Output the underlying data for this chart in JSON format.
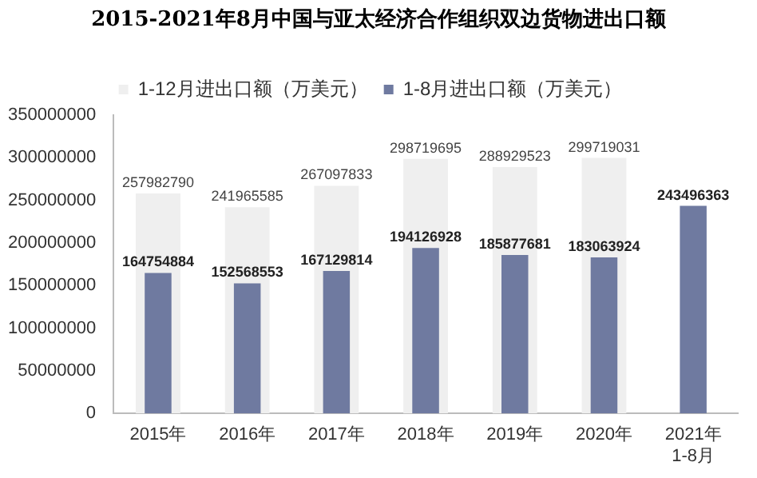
{
  "chart_data": {
    "type": "bar",
    "title": "2015-2021年8月中国与亚太经济合作组织双边货物进出口额",
    "categories": [
      "2015年",
      "2016年",
      "2017年",
      "2018年",
      "2019年",
      "2020年",
      "2021年1-8月"
    ],
    "series": [
      {
        "name": "1-12月进出口额（万美元）",
        "color": "#efefef",
        "values": [
          257982790,
          241965585,
          267097833,
          298719695,
          288929523,
          299719031,
          null
        ]
      },
      {
        "name": "1-8月进出口额（万美元）",
        "color": "#6f7aa0",
        "values": [
          164754884,
          152568553,
          167129814,
          194126928,
          185877681,
          183063924,
          243496363
        ]
      }
    ],
    "ylim": [
      0,
      350000000
    ],
    "yticks": [
      0,
      50000000,
      100000000,
      150000000,
      200000000,
      250000000,
      300000000,
      350000000
    ],
    "grid": false,
    "legend": "top",
    "data_labels": true
  }
}
